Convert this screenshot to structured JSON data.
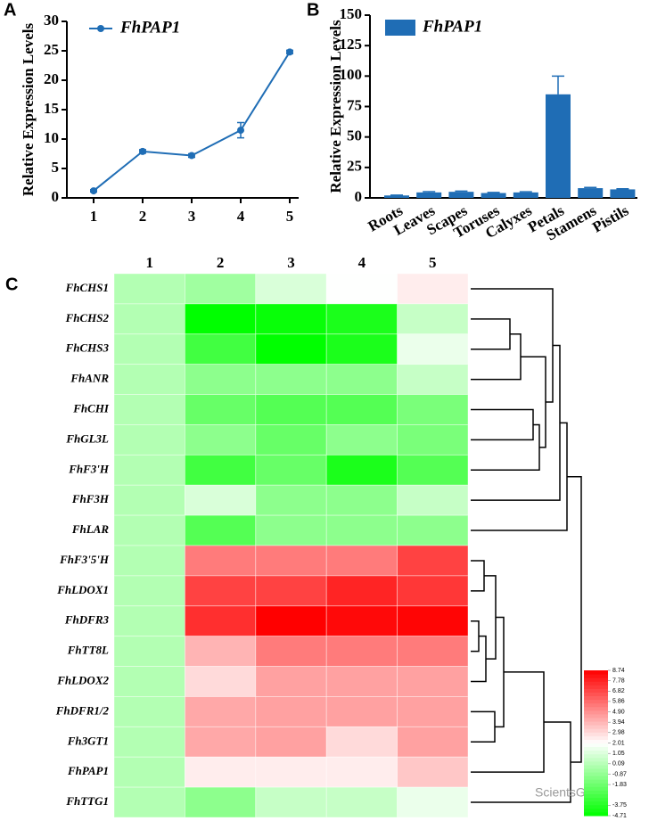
{
  "chart_data": [
    {
      "label": "A",
      "type": "line",
      "ylabel": "Relative Expression Levels",
      "categories": [
        "1",
        "2",
        "3",
        "4",
        "5"
      ],
      "series": [
        {
          "name": "FhPAP1",
          "color": "#1f6db5",
          "values": [
            1.2,
            7.9,
            7.2,
            11.5,
            24.8
          ],
          "errors": [
            0.2,
            0.3,
            0.3,
            1.3,
            0.3
          ]
        }
      ],
      "ylim": [
        0,
        30
      ],
      "yticks": [
        0,
        5,
        10,
        15,
        20,
        25,
        30
      ]
    },
    {
      "label": "B",
      "type": "bar",
      "ylabel": "Relative Expression Levels",
      "categories": [
        "Roots",
        "Leaves",
        "Scapes",
        "Toruses",
        "Calyxes",
        "Petals",
        "Stamens",
        "Pistils"
      ],
      "series": [
        {
          "name": "FhPAP1",
          "color": "#1f6db5",
          "values": [
            2,
            4.5,
            5,
            4,
            4.5,
            85,
            8,
            7
          ],
          "errors": [
            0.3,
            0.6,
            0.6,
            0.5,
            0.5,
            15,
            0.6,
            0.5
          ]
        }
      ],
      "ylim": [
        0,
        150
      ],
      "yticks": [
        0,
        25,
        50,
        75,
        100,
        125,
        150
      ]
    },
    {
      "label": "C",
      "type": "heatmap",
      "columns": [
        "1",
        "2",
        "3",
        "4",
        "5"
      ],
      "rows": [
        "FhCHS1",
        "FhCHS2",
        "FhCHS3",
        "FhANR",
        "FhCHI",
        "FhGL3L",
        "FhF3'H",
        "FhF3H",
        "FhLAR",
        "FhF3'5'H",
        "FhLDOX1",
        "FhDFR3",
        "FhTT8L",
        "FhLDOX2",
        "FhDFR1/2",
        "Fh3GT1",
        "FhPAP1",
        "FhTTG1"
      ],
      "values": [
        [
          0,
          -0.5,
          1.0,
          2.0,
          2.5
        ],
        [
          0,
          -4.7,
          -4.5,
          -4,
          0.5
        ],
        [
          0,
          -3,
          -4.7,
          -4,
          1.5
        ],
        [
          0,
          -1,
          -1,
          -1,
          0.5
        ],
        [
          0,
          -2,
          -2.5,
          -2.5,
          -1.5
        ],
        [
          0,
          -1,
          -2,
          -1,
          -1.5
        ],
        [
          0,
          -3,
          -2,
          -4,
          -2.5
        ],
        [
          0,
          1,
          -1,
          -1,
          0.5
        ],
        [
          0,
          -2.5,
          -1,
          -1,
          -1
        ],
        [
          0,
          5.5,
          5.5,
          5.5,
          7
        ],
        [
          0,
          7,
          7,
          7.8,
          7.3
        ],
        [
          0,
          7.5,
          8.74,
          8.5,
          8.6
        ],
        [
          0,
          4,
          5.5,
          5.5,
          5.5
        ],
        [
          0,
          3,
          4.5,
          4.5,
          4.5
        ],
        [
          0,
          4.3,
          4.5,
          4.5,
          4.5
        ],
        [
          0,
          4.3,
          4.5,
          3,
          4.5
        ],
        [
          0,
          2.5,
          2.5,
          2.5,
          3.5
        ],
        [
          0,
          -1,
          0.5,
          0.5,
          1.5
        ]
      ],
      "zlim": [
        -4.71,
        8.74
      ],
      "zticks": [
        8.74,
        7.78,
        6.82,
        5.86,
        {
          "value": 4.9,
          "label": "4.90"
        },
        3.94,
        2.98,
        2.01,
        1.05,
        0.09,
        -0.87,
        -1.83,
        -3.75,
        -4.71
      ],
      "colors": [
        "#00ff00",
        "#ffffff",
        "#ff0000"
      ]
    }
  ],
  "watermark": "ScientsGene"
}
